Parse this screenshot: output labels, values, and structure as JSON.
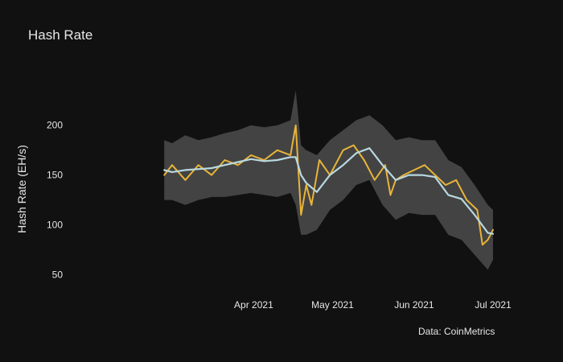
{
  "chart_data": {
    "type": "line",
    "title": "Hash Rate",
    "ylabel": "Hash Rate (EH/s)",
    "xlabel": "",
    "source": "Data: CoinMetrics",
    "xlim": [
      "2021-03-01",
      "2021-07-01"
    ],
    "ylim": [
      35,
      245
    ],
    "y_ticks": [
      50,
      100,
      150,
      200
    ],
    "x_ticks": [
      {
        "date": "2021-04-01",
        "label": "Apr 2021"
      },
      {
        "date": "2021-05-01",
        "label": "May 2021"
      },
      {
        "date": "2021-06-01",
        "label": "Jun 2021"
      },
      {
        "date": "2021-07-01",
        "label": "Jul 2021"
      }
    ],
    "grid": false,
    "legend": "none",
    "colors": {
      "background": "#111111",
      "daily": "#e8b43a",
      "average": "#b8d8e0",
      "band": "#474747",
      "text": "#e6e6e6"
    },
    "series": [
      {
        "role": "daily",
        "x": [
          "2021-02-26",
          "2021-03-01",
          "2021-03-06",
          "2021-03-11",
          "2021-03-16",
          "2021-03-21",
          "2021-03-26",
          "2021-03-31",
          "2021-04-05",
          "2021-04-10",
          "2021-04-15",
          "2021-04-17",
          "2021-04-19",
          "2021-04-21",
          "2021-04-23",
          "2021-04-26",
          "2021-04-30",
          "2021-05-05",
          "2021-05-09",
          "2021-05-13",
          "2021-05-17",
          "2021-05-21",
          "2021-05-23",
          "2021-05-25",
          "2021-05-28",
          "2021-06-01",
          "2021-06-05",
          "2021-06-09",
          "2021-06-13",
          "2021-06-17",
          "2021-06-21",
          "2021-06-25",
          "2021-06-27",
          "2021-06-29",
          "2021-07-01"
        ],
        "y": [
          150,
          160,
          145,
          160,
          150,
          165,
          160,
          170,
          165,
          175,
          170,
          200,
          110,
          140,
          120,
          165,
          150,
          175,
          180,
          165,
          145,
          160,
          130,
          145,
          150,
          155,
          160,
          150,
          140,
          145,
          125,
          115,
          80,
          85,
          95
        ]
      },
      {
        "role": "average",
        "x": [
          "2021-02-26",
          "2021-03-01",
          "2021-03-06",
          "2021-03-11",
          "2021-03-16",
          "2021-03-21",
          "2021-03-26",
          "2021-03-31",
          "2021-04-05",
          "2021-04-10",
          "2021-04-15",
          "2021-04-17",
          "2021-04-19",
          "2021-04-21",
          "2021-04-25",
          "2021-04-30",
          "2021-05-05",
          "2021-05-10",
          "2021-05-15",
          "2021-05-20",
          "2021-05-25",
          "2021-05-30",
          "2021-06-04",
          "2021-06-09",
          "2021-06-14",
          "2021-06-19",
          "2021-06-24",
          "2021-06-29",
          "2021-07-01"
        ],
        "y": [
          155,
          153,
          155,
          156,
          157,
          160,
          163,
          166,
          164,
          165,
          168,
          168,
          150,
          142,
          133,
          150,
          160,
          172,
          177,
          160,
          145,
          150,
          150,
          148,
          130,
          126,
          110,
          92,
          91
        ]
      }
    ],
    "band": {
      "x": [
        "2021-02-26",
        "2021-03-01",
        "2021-03-06",
        "2021-03-11",
        "2021-03-16",
        "2021-03-21",
        "2021-03-26",
        "2021-03-31",
        "2021-04-05",
        "2021-04-10",
        "2021-04-15",
        "2021-04-17",
        "2021-04-19",
        "2021-04-21",
        "2021-04-25",
        "2021-04-30",
        "2021-05-05",
        "2021-05-10",
        "2021-05-15",
        "2021-05-20",
        "2021-05-25",
        "2021-05-30",
        "2021-06-04",
        "2021-06-09",
        "2021-06-14",
        "2021-06-19",
        "2021-06-24",
        "2021-06-29",
        "2021-07-01"
      ],
      "upper": [
        185,
        182,
        190,
        185,
        188,
        192,
        195,
        200,
        198,
        200,
        205,
        235,
        180,
        175,
        170,
        185,
        195,
        205,
        210,
        200,
        185,
        188,
        185,
        185,
        165,
        158,
        140,
        120,
        115
      ],
      "lower": [
        125,
        125,
        120,
        125,
        128,
        128,
        130,
        132,
        130,
        128,
        132,
        120,
        90,
        90,
        95,
        115,
        125,
        140,
        145,
        120,
        105,
        112,
        110,
        110,
        90,
        85,
        70,
        55,
        65
      ]
    }
  }
}
